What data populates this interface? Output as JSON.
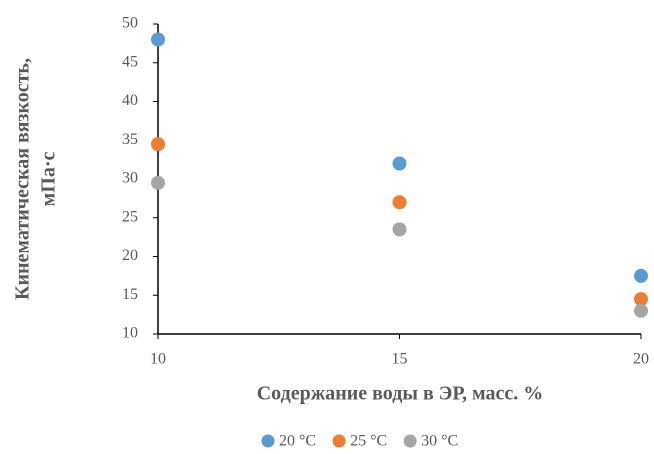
{
  "chart_data": {
    "type": "scatter",
    "xlabel": "Содержание воды в ЭР, масс. %",
    "ylabel": [
      "Кинематическая вязкость,",
      "мПа·с"
    ],
    "x": [
      10,
      15,
      20
    ],
    "series": [
      {
        "name": "20 °C",
        "color": "#5b9bd5",
        "values": [
          48,
          32,
          17.5
        ]
      },
      {
        "name": "25 °C",
        "color": "#ed7d31",
        "values": [
          34.5,
          27,
          14.5
        ]
      },
      {
        "name": "30 °C",
        "color": "#a5a5a5",
        "values": [
          29.5,
          23.5,
          13
        ]
      }
    ],
    "xlim": [
      10,
      20
    ],
    "xticks": [
      10,
      15,
      20
    ],
    "ylim": [
      10,
      50
    ],
    "yticks": [
      10,
      15,
      20,
      25,
      30,
      35,
      40,
      45,
      50
    ],
    "grid": false,
    "legend": "bottom"
  }
}
